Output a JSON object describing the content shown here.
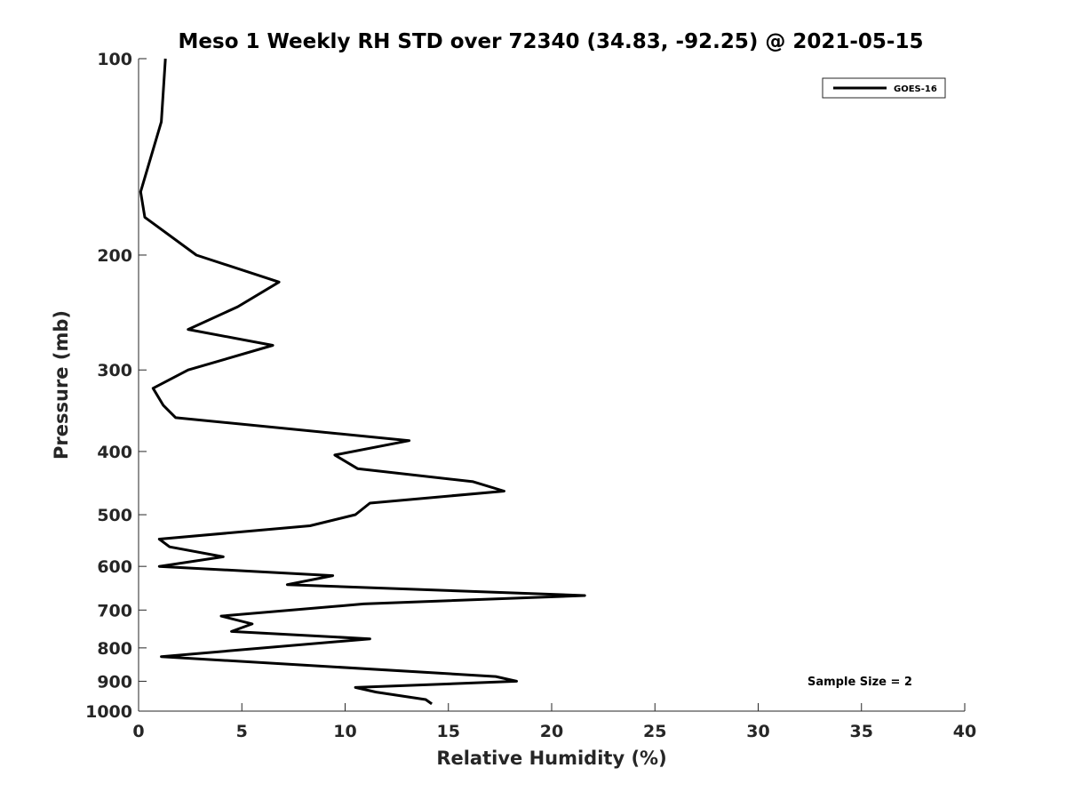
{
  "chart_data": {
    "type": "line",
    "title": "Meso 1 Weekly RH STD over 72340 (34.83, -92.25) @ 2021-05-15",
    "xlabel": "Relative Humidity (%)",
    "ylabel": "Pressure (mb)",
    "xlim": [
      0,
      40
    ],
    "ylim": [
      100,
      1000
    ],
    "y_scale": "log",
    "y_direction": "reversed",
    "x_ticks": [
      "0",
      "5",
      "10",
      "15",
      "20",
      "25",
      "30",
      "35",
      "40"
    ],
    "y_ticks": [
      "100",
      "200",
      "300",
      "400",
      "500",
      "600",
      "700",
      "800",
      "900",
      "1000"
    ],
    "grid": false,
    "legend_position": "top-right",
    "line_color": "#000000",
    "series": [
      {
        "name": "GOES-16",
        "points": [
          [
            1.3,
            100
          ],
          [
            1.1,
            125
          ],
          [
            0.1,
            160
          ],
          [
            0.3,
            175
          ],
          [
            2.8,
            200
          ],
          [
            6.8,
            220
          ],
          [
            4.8,
            240
          ],
          [
            2.4,
            260
          ],
          [
            6.5,
            275
          ],
          [
            2.4,
            300
          ],
          [
            0.7,
            320
          ],
          [
            1.2,
            340
          ],
          [
            1.8,
            355
          ],
          [
            13.1,
            385
          ],
          [
            9.5,
            405
          ],
          [
            10.6,
            425
          ],
          [
            16.2,
            445
          ],
          [
            17.7,
            460
          ],
          [
            11.2,
            480
          ],
          [
            10.5,
            500
          ],
          [
            8.3,
            520
          ],
          [
            1.0,
            545
          ],
          [
            1.5,
            560
          ],
          [
            4.1,
            580
          ],
          [
            1.0,
            600
          ],
          [
            9.4,
            620
          ],
          [
            7.2,
            640
          ],
          [
            21.6,
            665
          ],
          [
            10.9,
            685
          ],
          [
            4.0,
            715
          ],
          [
            5.5,
            735
          ],
          [
            4.5,
            755
          ],
          [
            11.2,
            775
          ],
          [
            1.1,
            825
          ],
          [
            17.3,
            885
          ],
          [
            18.3,
            900
          ],
          [
            10.5,
            920
          ],
          [
            11.5,
            935
          ],
          [
            13.9,
            960
          ],
          [
            14.2,
            975
          ]
        ]
      }
    ],
    "annotation": "Sample Size = 2"
  }
}
